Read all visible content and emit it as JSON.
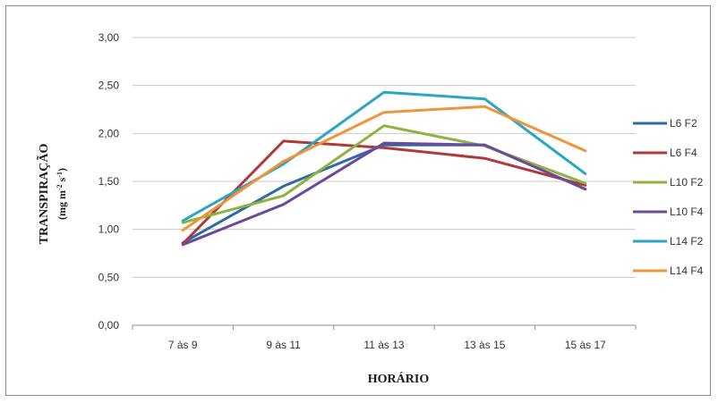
{
  "chart_data": {
    "type": "line",
    "title": "",
    "xlabel": "HORÁRIO",
    "ylabel": "TRANSPIRAÇÃO",
    "ylabel_unit": "(mg m-2 s-1)",
    "categories": [
      "7 às 9",
      "9 às 11",
      "11 às 13",
      "13 às 15",
      "15 às 17"
    ],
    "ylim": [
      0,
      3
    ],
    "yticks": [
      "0,00",
      "0,50",
      "1,00",
      "1,50",
      "2,00",
      "2,50",
      "3,00"
    ],
    "grid": true,
    "legend_position": "right",
    "series": [
      {
        "name": "L6 F2",
        "color": "#2E6BA6",
        "values": [
          0.86,
          1.45,
          1.88,
          1.88,
          1.42
        ]
      },
      {
        "name": "L6 F4",
        "color": "#B03A3A",
        "values": [
          0.85,
          1.92,
          1.85,
          1.74,
          1.46
        ]
      },
      {
        "name": "L10 F2",
        "color": "#8DB33F",
        "values": [
          1.07,
          1.35,
          2.08,
          1.87,
          1.48
        ]
      },
      {
        "name": "L10 F4",
        "color": "#6A4A9B",
        "values": [
          0.84,
          1.26,
          1.9,
          1.88,
          1.42
        ]
      },
      {
        "name": "L14 F2",
        "color": "#2BA5C2",
        "values": [
          1.09,
          1.68,
          2.43,
          2.36,
          1.58
        ]
      },
      {
        "name": "L14 F4",
        "color": "#F0943C",
        "values": [
          0.99,
          1.71,
          2.22,
          2.28,
          1.82
        ]
      }
    ]
  }
}
